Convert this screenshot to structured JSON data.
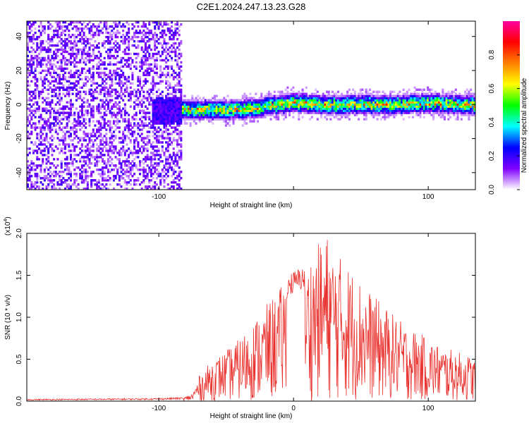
{
  "title": "C2E1.2024.247.13.23.G28",
  "chart_data": [
    {
      "type": "heatmap",
      "xlabel": "Height of straight line (km)",
      "ylabel": "Frequency (Hz)",
      "xlim": [
        -198,
        135
      ],
      "ylim": [
        -50,
        49
      ],
      "x_ticks": [
        -100,
        0,
        100
      ],
      "x_tick_labels": [
        "-100",
        "",
        "100"
      ],
      "y_ticks": [
        -40,
        -20,
        0,
        20,
        40
      ],
      "y_tick_labels": [
        "-40",
        "-20",
        "0",
        "20",
        "40"
      ],
      "colorbar": {
        "label": "Normalized spectral amplitude",
        "range": [
          0,
          1
        ],
        "ticks": [
          0.0,
          0.2,
          0.4,
          0.6,
          0.8
        ],
        "tick_labels": [
          "0.0",
          "0.2",
          "0.4",
          "0.6",
          "0.8"
        ],
        "colors": [
          "#ffffff",
          "#8000ff",
          "#0000ff",
          "#00ffff",
          "#00ff00",
          "#ffff00",
          "#ff8000",
          "#ff0000",
          "#ff00a0"
        ]
      },
      "noise_region_x": [
        -198,
        -83
      ],
      "signal_ridge": {
        "x": [
          -100,
          -80,
          -60,
          -40,
          -20,
          0,
          20,
          40,
          60,
          80,
          100,
          120,
          135
        ],
        "frequency": [
          -4,
          -3,
          -3,
          -3,
          -1,
          1,
          0,
          0,
          0,
          0,
          1,
          0,
          0
        ]
      }
    },
    {
      "type": "line",
      "xlabel": "Height of straight line (km)",
      "ylabel": "SNR (10 * v/v)",
      "y_multiplier_label": "(x10",
      "y_multiplier_exp": "4",
      "y_multiplier_close": ")",
      "xlim": [
        -198,
        135
      ],
      "ylim": [
        0,
        2.0
      ],
      "x_ticks": [
        -100,
        0,
        100
      ],
      "x_tick_labels": [
        "-100",
        "0",
        "100"
      ],
      "y_ticks": [
        0.0,
        0.5,
        1.0,
        1.5,
        2.0
      ],
      "y_tick_labels": [
        "0.0",
        "0.5",
        "1.0",
        "1.5",
        "2.0"
      ],
      "series": [
        {
          "color": "#e8302c",
          "envelope_x": [
            -198,
            -100,
            -82,
            -75,
            -70,
            -60,
            -50,
            -40,
            -30,
            -20,
            -10,
            -5,
            0,
            5,
            10,
            15,
            20,
            25,
            30,
            40,
            50,
            60,
            70,
            80,
            90,
            100,
            110,
            120,
            130,
            135
          ],
          "envelope_y": [
            0.02,
            0.03,
            0.04,
            0.1,
            0.3,
            0.5,
            0.6,
            0.75,
            0.95,
            1.15,
            1.35,
            1.5,
            1.55,
            1.6,
            1.65,
            1.85,
            1.9,
            2.0,
            1.8,
            1.65,
            1.45,
            1.25,
            1.1,
            0.95,
            0.85,
            0.75,
            0.65,
            0.6,
            0.55,
            0.5
          ]
        }
      ]
    }
  ]
}
